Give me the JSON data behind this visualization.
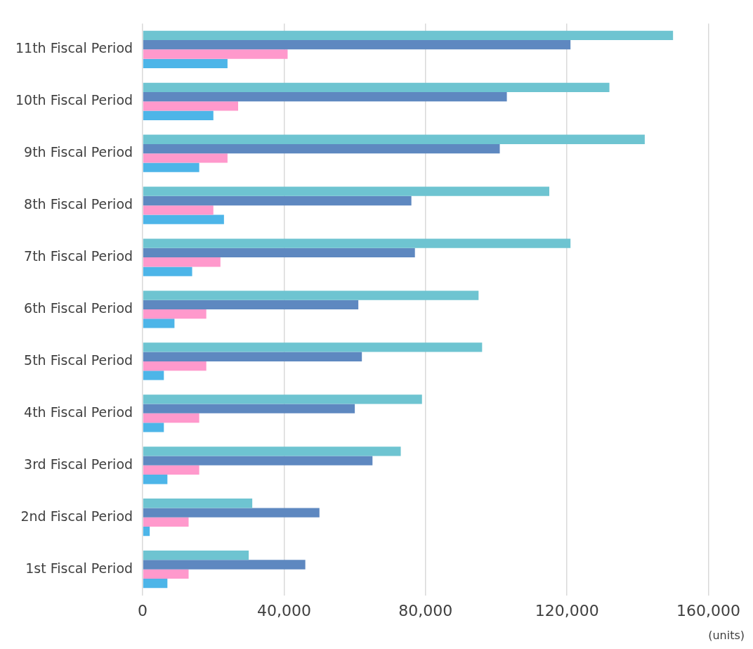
{
  "chart_data": {
    "type": "bar",
    "orientation": "horizontal",
    "categories": [
      "11th Fiscal Period",
      "10th Fiscal Period",
      "9th Fiscal Period",
      "8th Fiscal Period",
      "7th Fiscal Period",
      "6th Fiscal Period",
      "5th Fiscal Period",
      "4th Fiscal Period",
      "3rd Fiscal Period",
      "2nd Fiscal Period",
      "1st Fiscal Period"
    ],
    "series": [
      {
        "color": "#6ec4d1",
        "values": [
          150000,
          132000,
          142000,
          115000,
          121000,
          95000,
          96000,
          79000,
          73000,
          31000,
          30000
        ]
      },
      {
        "color": "#5e88c0",
        "values": [
          121000,
          103000,
          101000,
          76000,
          77000,
          61000,
          62000,
          60000,
          65000,
          50000,
          46000
        ]
      },
      {
        "color": "#ff99cc",
        "values": [
          41000,
          27000,
          24000,
          20000,
          22000,
          18000,
          18000,
          16000,
          16000,
          13000,
          13000
        ]
      },
      {
        "color": "#4db5e8",
        "values": [
          24000,
          20000,
          16000,
          23000,
          14000,
          9000,
          6000,
          6000,
          7000,
          2000,
          7000
        ]
      }
    ],
    "xlim": [
      0,
      160000
    ],
    "xticks": [
      0,
      {
        "value": 40000,
        "label": "40,000"
      },
      {
        "value": 80000,
        "label": "80,000"
      },
      {
        "value": 120000,
        "label": "120,000"
      },
      {
        "value": 160000,
        "label": "160,000"
      }
    ],
    "grid": "x",
    "legend": false,
    "annotations": [
      "(units)"
    ]
  }
}
